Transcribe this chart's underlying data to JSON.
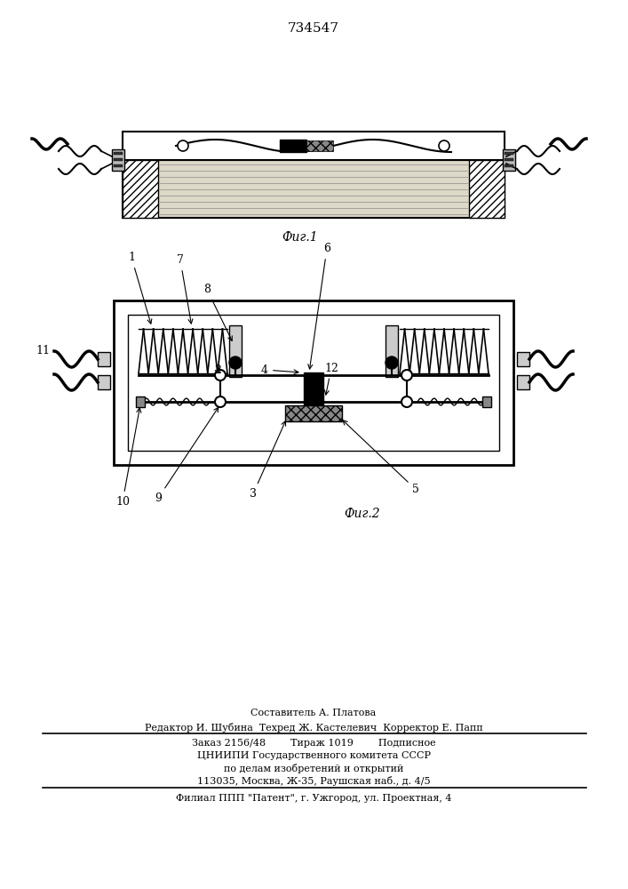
{
  "title": "734547",
  "fig1_caption": "Фиг.1",
  "fig2_caption": "Фиг.2",
  "footer_line1": "Составитель А. Платова",
  "footer_line2": "Редактор И. Шубина  Техред Ж. Кастелевич  Корректор Е. Папп",
  "footer_line3": "Заказ 2156/48        Тираж 1019        Подписное",
  "footer_line4": "ЦНИИПИ Государственного комитета СССР",
  "footer_line5": "по делам изобретений и открытий",
  "footer_line6": "113035, Москва, Ж-35, Раушская наб., д. 4/5",
  "footer_line7": "Филиал ППП \"Патент\", г. Ужгород, ул. Проектная, 4",
  "bg_color": "#ffffff",
  "line_color": "#000000"
}
